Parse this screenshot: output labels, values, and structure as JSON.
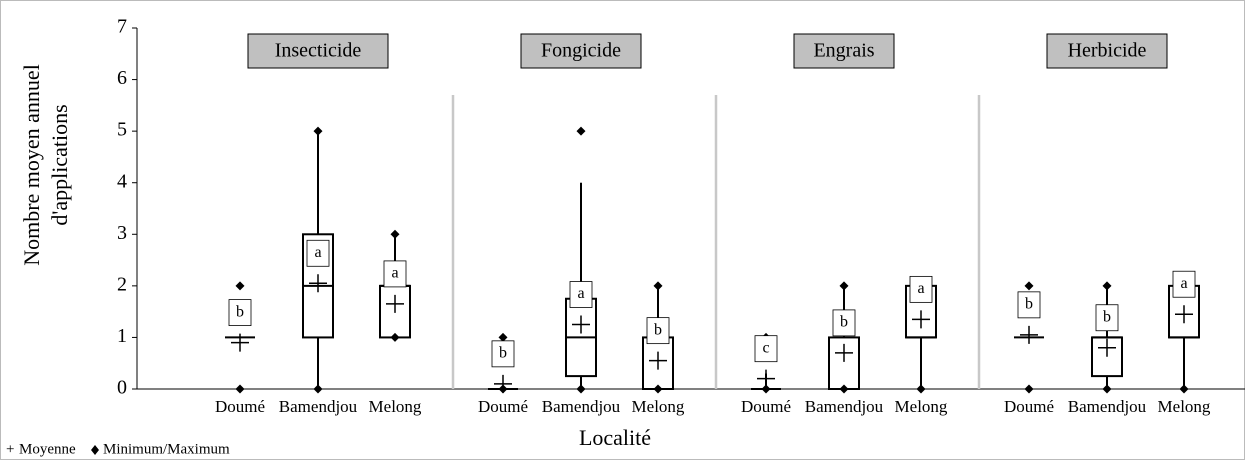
{
  "chart_data": {
    "type": "box",
    "ylabel": [
      "Nombre moyen annuel",
      "d'applications"
    ],
    "xlabel": "Localité",
    "ylim": [
      0,
      7
    ],
    "yticks": [
      0,
      1,
      2,
      3,
      4,
      5,
      6,
      7
    ],
    "legend": {
      "mean": "Moyenne",
      "minmax": "Minimum/Maximum"
    },
    "groups": [
      {
        "name": "Insecticide",
        "categories": [
          "Doumé",
          "Bamendjou",
          "Melong"
        ],
        "q1": [
          1,
          1,
          1
        ],
        "median": [
          1,
          2,
          2
        ],
        "q3": [
          1,
          3,
          2
        ],
        "whisker_low": [
          1,
          0,
          1
        ],
        "whisker_high": [
          1,
          5,
          3
        ],
        "mean": [
          0.9,
          2.05,
          1.65
        ],
        "min": [
          0,
          0,
          1
        ],
        "max": [
          2,
          5,
          3
        ],
        "letters": [
          "b",
          "a",
          "a"
        ]
      },
      {
        "name": "Fongicide",
        "categories": [
          "Doumé",
          "Bamendjou",
          "Melong"
        ],
        "q1": [
          0,
          0.25,
          0
        ],
        "median": [
          0,
          1,
          0
        ],
        "q3": [
          0,
          1.75,
          1
        ],
        "whisker_low": [
          0,
          0,
          0
        ],
        "whisker_high": [
          0,
          4,
          2
        ],
        "mean": [
          0.1,
          1.25,
          0.55
        ],
        "min": [
          0,
          0,
          0
        ],
        "max": [
          1,
          5,
          2
        ],
        "letters": [
          "b",
          "a",
          "b"
        ]
      },
      {
        "name": "Engrais",
        "categories": [
          "Doumé",
          "Bamendjou",
          "Melong"
        ],
        "q1": [
          0,
          0,
          1
        ],
        "median": [
          0,
          0,
          1
        ],
        "q3": [
          0,
          1,
          2
        ],
        "whisker_low": [
          0,
          0,
          0
        ],
        "whisker_high": [
          0.3,
          2,
          2
        ],
        "mean": [
          0.2,
          0.7,
          1.35
        ],
        "min": [
          0,
          0,
          0
        ],
        "max": [
          1,
          2,
          2
        ],
        "letters": [
          "c",
          "b",
          "a"
        ]
      },
      {
        "name": "Herbicide",
        "categories": [
          "Doumé",
          "Bamendjou",
          "Melong"
        ],
        "q1": [
          1,
          0.25,
          1
        ],
        "median": [
          1,
          1,
          1
        ],
        "q3": [
          1,
          1,
          2
        ],
        "whisker_low": [
          1,
          0,
          0
        ],
        "whisker_high": [
          1,
          2,
          2
        ],
        "mean": [
          1.05,
          0.8,
          1.45
        ],
        "min": [
          0,
          0,
          0
        ],
        "max": [
          2,
          2,
          2
        ],
        "letters": [
          "b",
          "b",
          "a"
        ]
      }
    ]
  }
}
